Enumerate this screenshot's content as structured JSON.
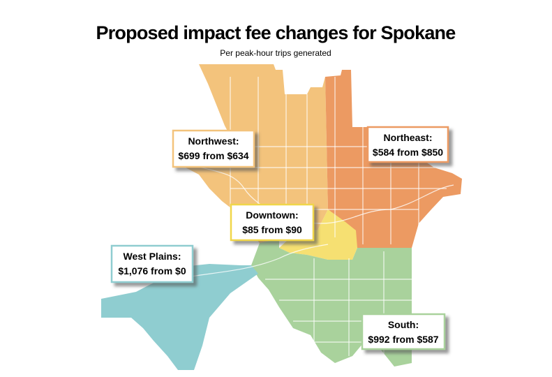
{
  "title": "Proposed impact fee changes for Spokane",
  "subtitle": "Per peak-hour trips generated",
  "regions": [
    {
      "name": "Northwest:",
      "fee": "$699 from $634"
    },
    {
      "name": "Northeast:",
      "fee": "$584 from $850"
    },
    {
      "name": "Downtown:",
      "fee": "$85 from $90"
    },
    {
      "name": "West Plains:",
      "fee": "$1,076 from $0"
    },
    {
      "name": "South:",
      "fee": "$992 from $587"
    }
  ]
}
